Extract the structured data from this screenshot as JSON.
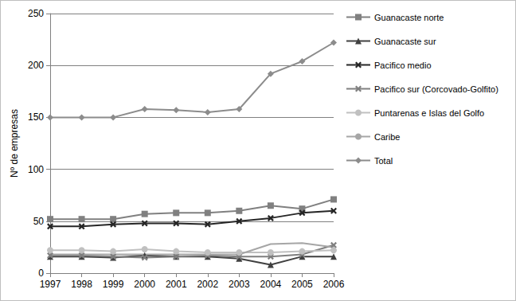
{
  "chart_data": {
    "type": "line",
    "y_label": "Nº de empresas",
    "categories": [
      "1997",
      "1998",
      "1999",
      "2000",
      "2001",
      "2002",
      "2003",
      "2004",
      "2005",
      "2006"
    ],
    "series": [
      {
        "name": "Guanacaste norte",
        "color": "#808080",
        "marker": "square",
        "values": [
          52,
          52,
          52,
          57,
          58,
          58,
          60,
          65,
          62,
          71
        ]
      },
      {
        "name": "Guanacaste sur",
        "color": "#404040",
        "marker": "triangle",
        "values": [
          16,
          16,
          15,
          17,
          16,
          16,
          14,
          8,
          16,
          16
        ]
      },
      {
        "name": "Pacifico medio",
        "color": "#262626",
        "marker": "x",
        "values": [
          45,
          45,
          47,
          48,
          48,
          47,
          50,
          53,
          58,
          60
        ]
      },
      {
        "name": "Pacifico sur (Corcovado-Golfito)",
        "color": "#7f7f7f",
        "marker": "x",
        "values": [
          17,
          17,
          16,
          15,
          16,
          17,
          16,
          16,
          18,
          27
        ]
      },
      {
        "name": "Puntarenas e Islas del Golfo",
        "color": "#c0c0c0",
        "marker": "circle",
        "values": [
          22,
          22,
          21,
          23,
          21,
          20,
          20,
          20,
          21,
          22
        ]
      },
      {
        "name": "Caribe",
        "color": "#a6a6a6",
        "marker": "none",
        "values": [
          18,
          18,
          18,
          18,
          18,
          18,
          18,
          28,
          29,
          25
        ]
      },
      {
        "name": "Total",
        "color": "#8c8c8c",
        "marker": "diamond",
        "values": [
          150,
          150,
          150,
          158,
          157,
          155,
          158,
          192,
          204,
          222
        ]
      }
    ],
    "ylim": [
      0,
      250
    ],
    "yticks": [
      0,
      50,
      100,
      150,
      200,
      250
    ],
    "grid": true,
    "legend": "right"
  }
}
